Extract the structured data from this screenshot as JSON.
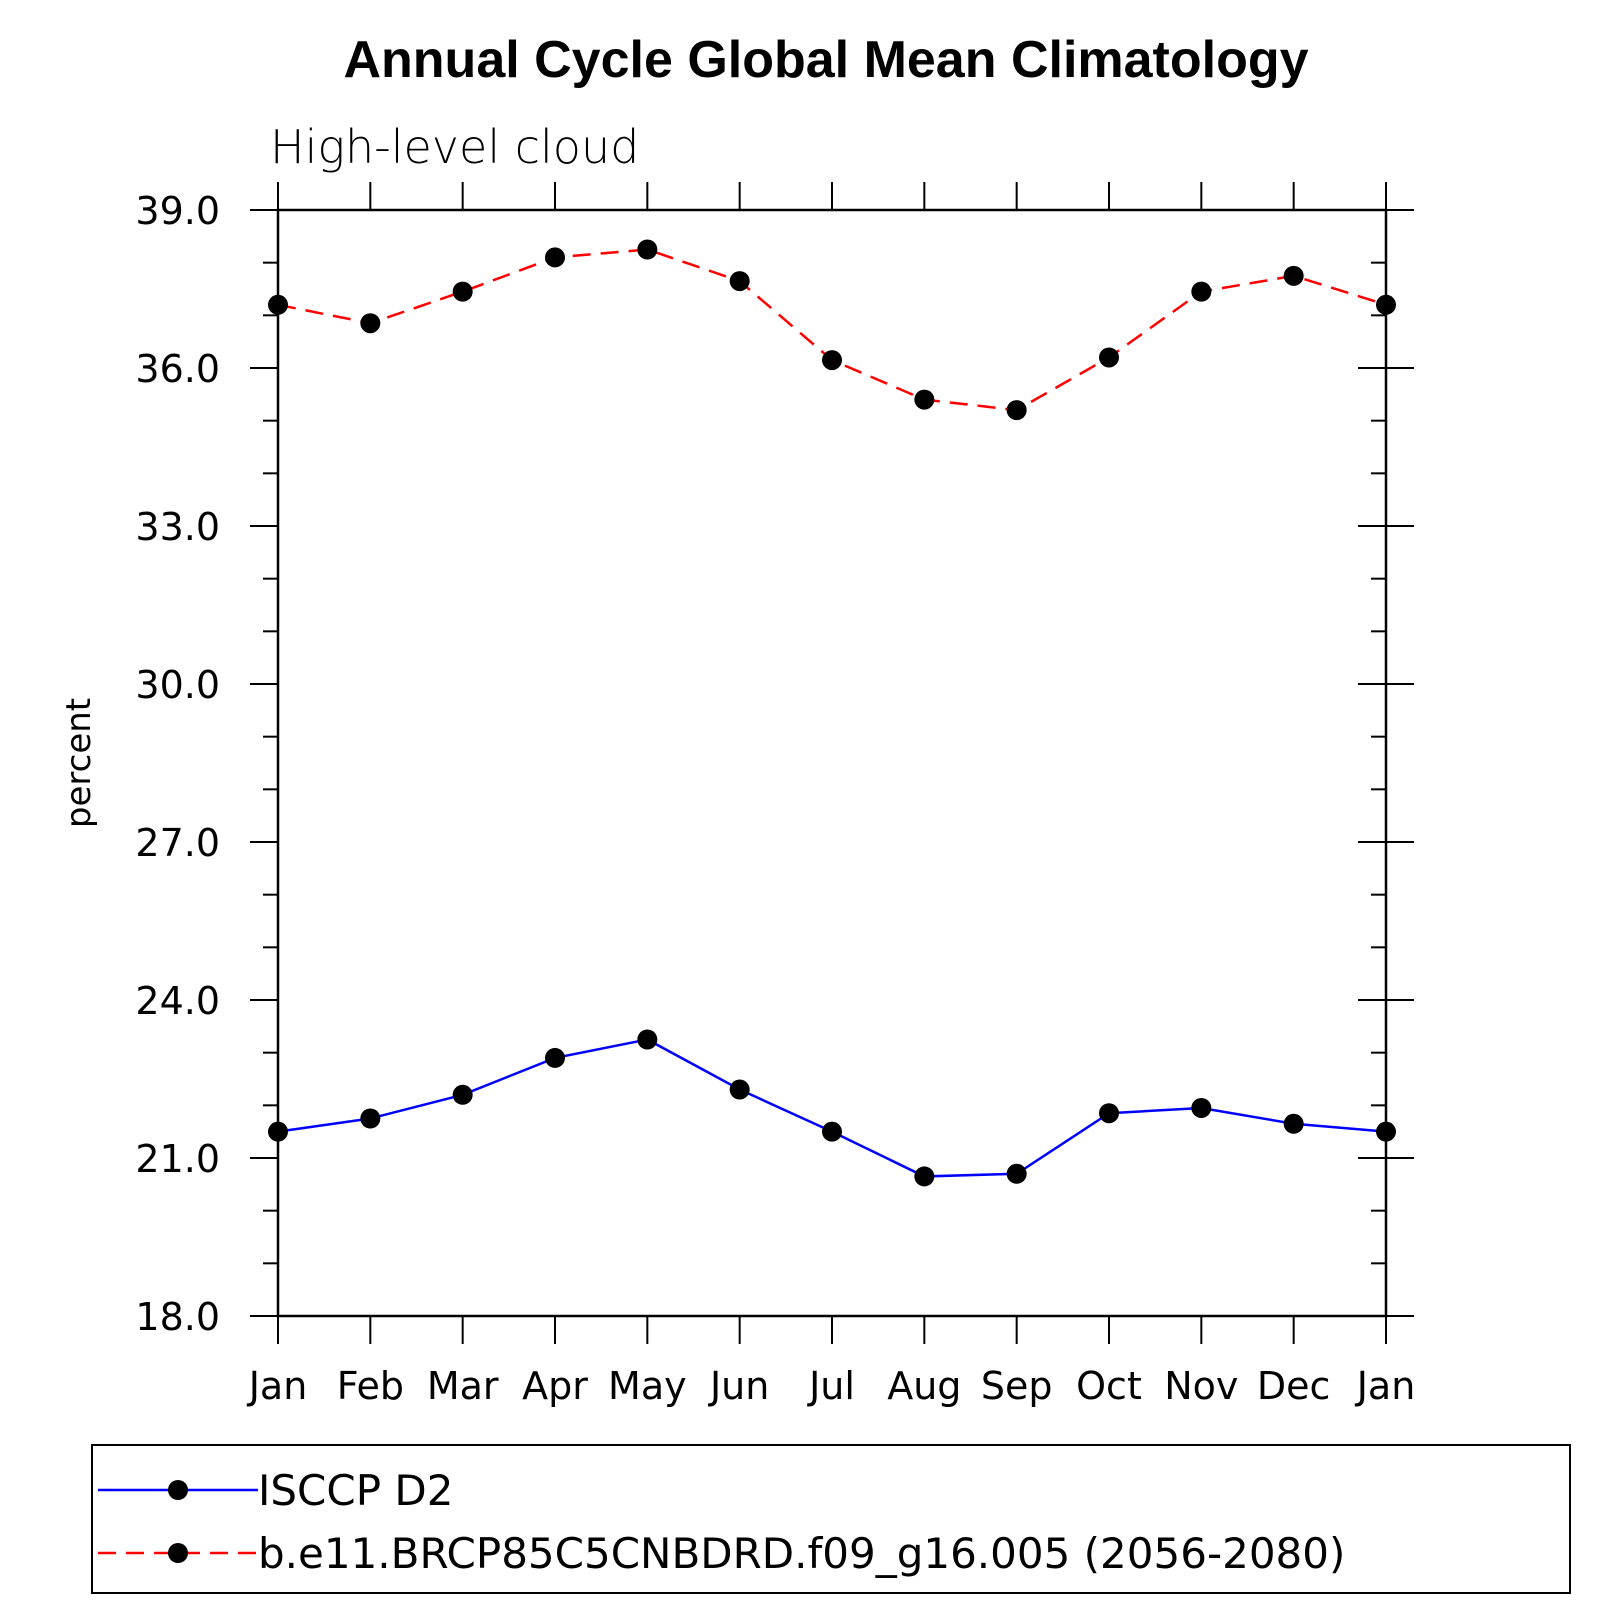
{
  "chart_data": {
    "type": "line",
    "title": "Annual Cycle Global Mean Climatology",
    "subtitle": "High-level cloud",
    "ylabel": "percent",
    "xlabel": "",
    "categories": [
      "Jan",
      "Feb",
      "Mar",
      "Apr",
      "May",
      "Jun",
      "Jul",
      "Aug",
      "Sep",
      "Oct",
      "Nov",
      "Dec",
      "Jan"
    ],
    "ylim": [
      18.0,
      39.0
    ],
    "yticks": [
      "18.0",
      "21.0",
      "24.0",
      "27.0",
      "30.0",
      "33.0",
      "36.0",
      "39.0"
    ],
    "grid": false,
    "legend_position": "bottom",
    "series": [
      {
        "name": "ISCCP D2",
        "color": "#0000ff",
        "line_style": "solid",
        "values": [
          21.5,
          21.75,
          22.2,
          22.9,
          23.25,
          22.3,
          21.5,
          20.65,
          20.7,
          21.85,
          21.95,
          21.65,
          21.5
        ]
      },
      {
        "name": "b.e11.BRCP85C5CNBDRD.f09_g16.005 (2056-2080)",
        "color": "#ff0000",
        "line_style": "dashed",
        "values": [
          37.2,
          36.85,
          37.45,
          38.1,
          38.25,
          37.65,
          36.15,
          35.4,
          35.2,
          36.2,
          37.45,
          37.75,
          37.2
        ]
      }
    ]
  }
}
